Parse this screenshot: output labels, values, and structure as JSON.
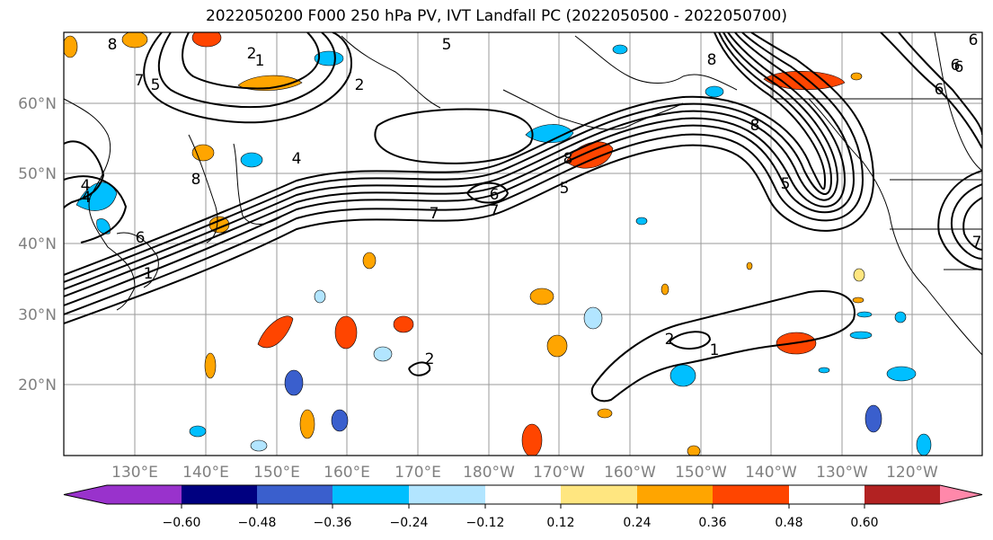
{
  "title": "2022050200 F000 250 hPa PV, IVT Landfall PC (2022050500 - 2022050700)",
  "map": {
    "lon_ticks": [
      "130°E",
      "140°E",
      "150°E",
      "160°E",
      "170°E",
      "180°W",
      "170°W",
      "160°W",
      "150°W",
      "140°W",
      "130°W",
      "120°W"
    ],
    "lat_ticks": [
      "20°N",
      "30°N",
      "40°N",
      "50°N",
      "60°N"
    ],
    "contour_labels": [
      "8",
      "7",
      "6",
      "5",
      "4",
      "2",
      "1",
      "2",
      "6",
      "7",
      "7",
      "4",
      "8",
      "6",
      "5",
      "5",
      "7",
      "6",
      "8",
      "8",
      "6",
      "6",
      "5",
      "2",
      "1",
      "2",
      "1",
      "8",
      "4"
    ]
  },
  "colorbar": {
    "colors": [
      "#9932cc",
      "#000080",
      "#3a5fcd",
      "#00bfff",
      "#b2e5ff",
      "#ffffff",
      "#ffe680",
      "#ffa500",
      "#ff4500",
      "#b22222",
      "#ff88aa"
    ],
    "ticks": [
      "−0.60",
      "−0.48",
      "−0.36",
      "−0.24",
      "−0.12",
      "0.12",
      "0.24",
      "0.36",
      "0.48",
      "0.60"
    ]
  }
}
